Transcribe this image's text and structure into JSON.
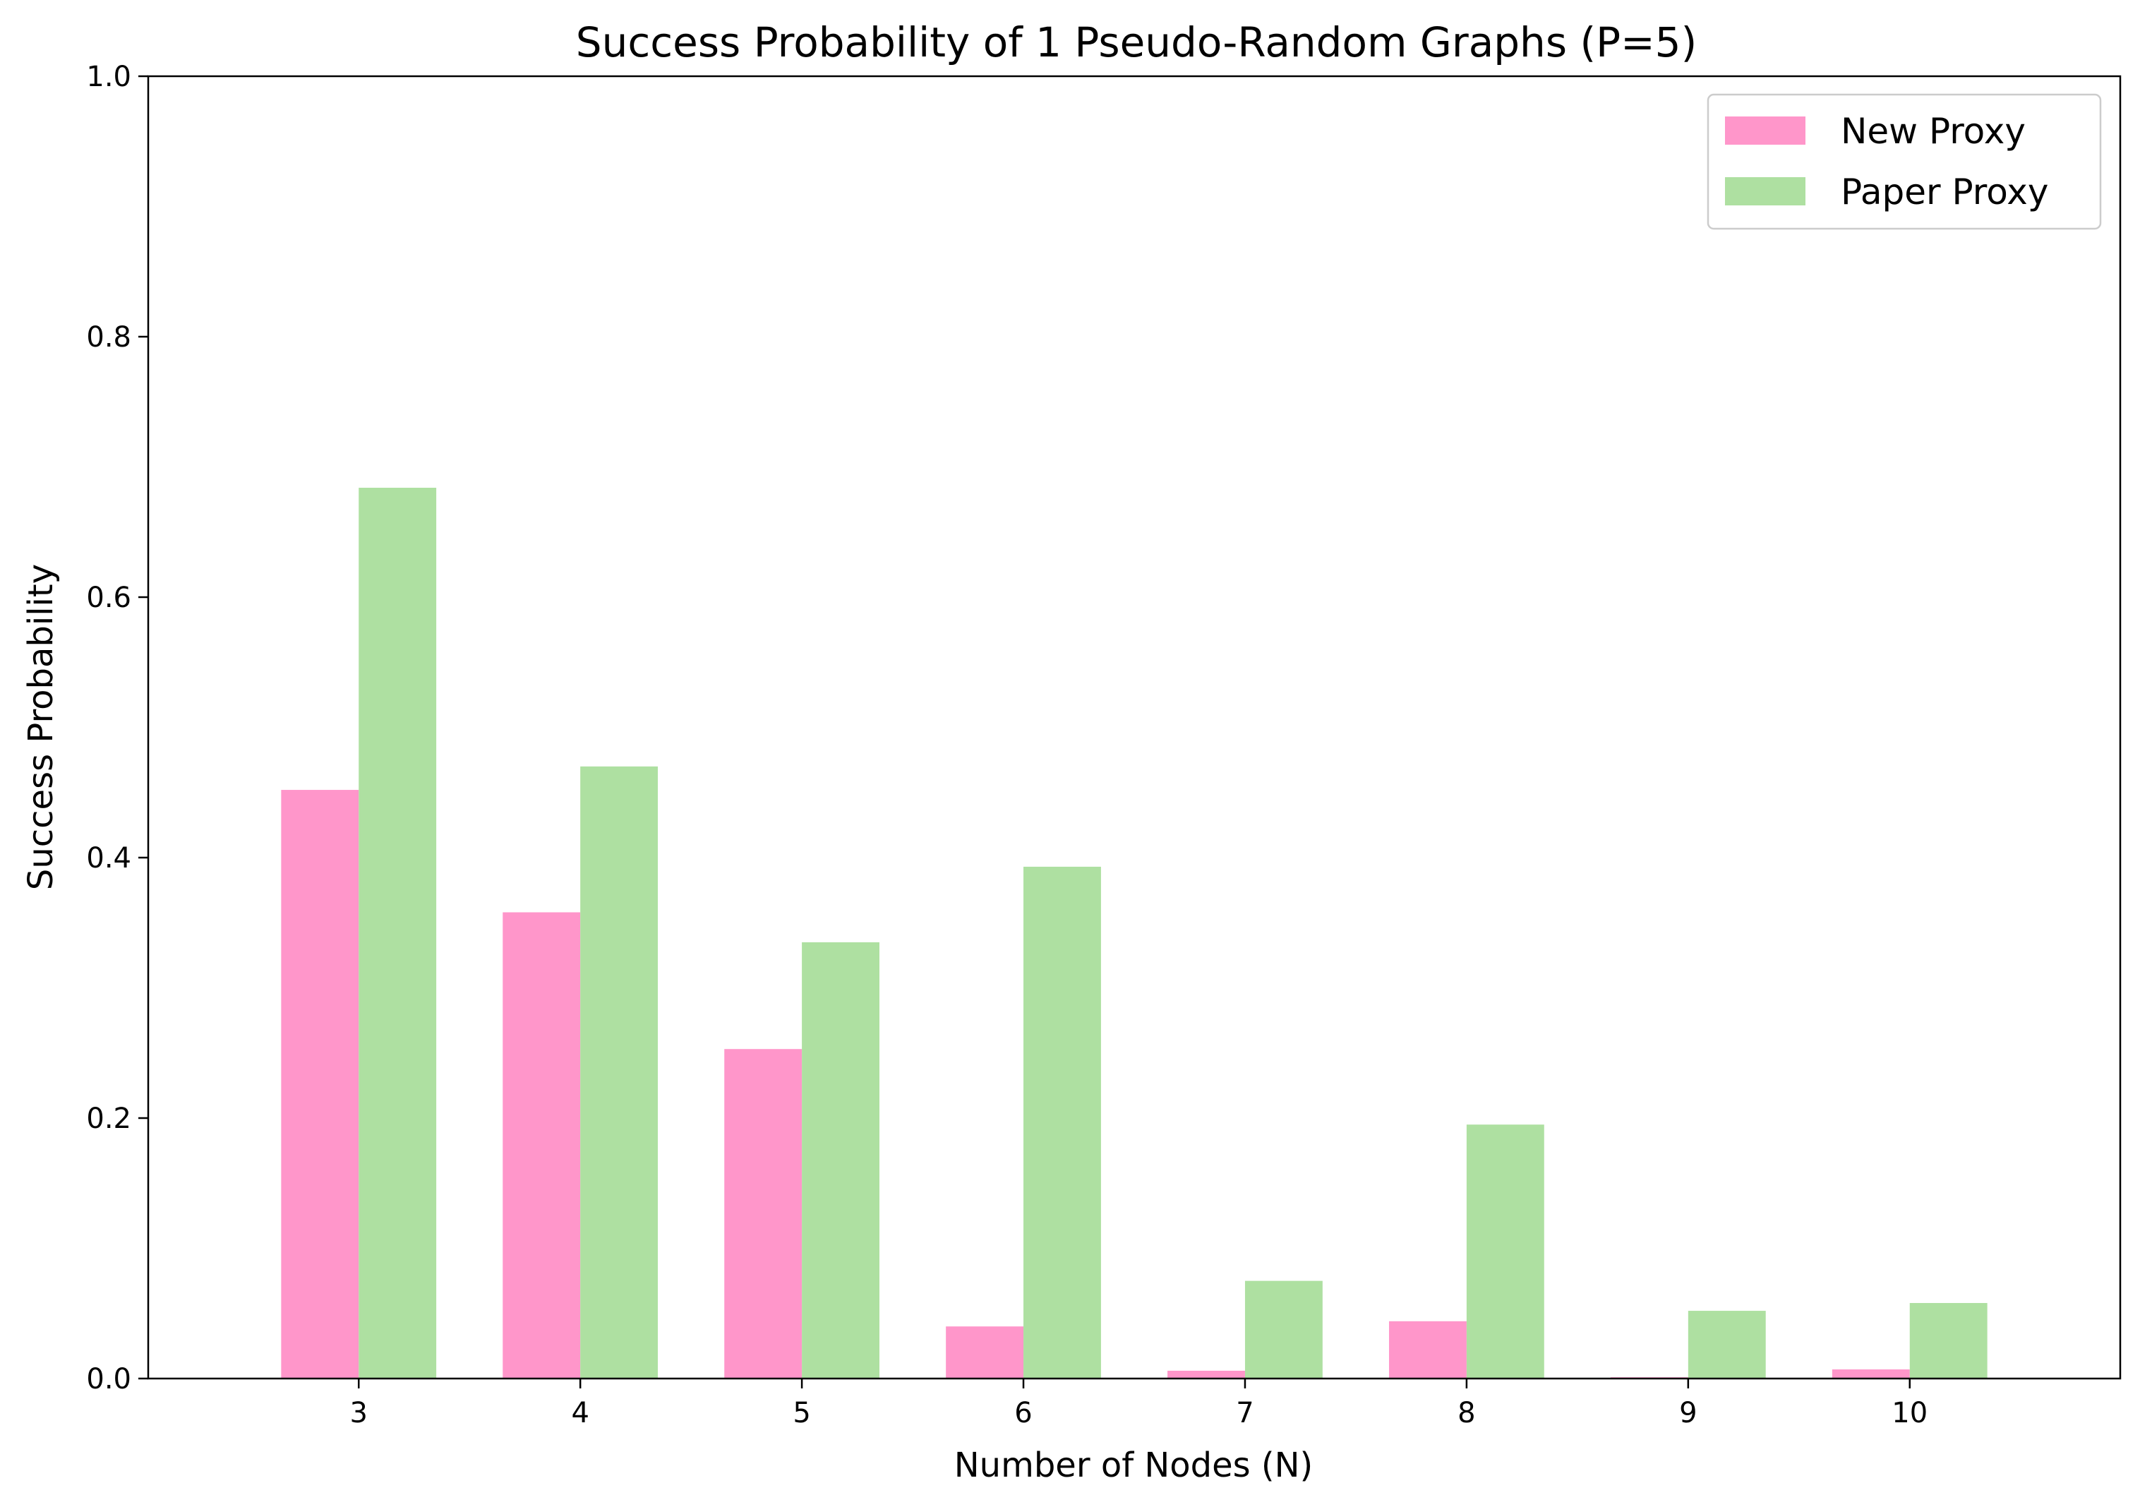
{
  "chart_data": {
    "type": "bar",
    "title": "Success Probability of 1 Pseudo-Random Graphs (P=5)",
    "xlabel": "Number of Nodes (N)",
    "ylabel": "Success Probability",
    "categories": [
      "3",
      "4",
      "5",
      "6",
      "7",
      "8",
      "9",
      "10"
    ],
    "series": [
      {
        "name": "New Proxy",
        "color": "#ff96ca",
        "values": [
          0.452,
          0.358,
          0.253,
          0.04,
          0.006,
          0.044,
          0.001,
          0.007
        ]
      },
      {
        "name": "Paper Proxy",
        "color": "#aee0a1",
        "values": [
          0.684,
          0.47,
          0.335,
          0.393,
          0.075,
          0.195,
          0.052,
          0.058
        ]
      }
    ],
    "ylim": [
      0,
      1.0
    ],
    "yticks": [
      "0.0",
      "0.2",
      "0.4",
      "0.6",
      "0.8",
      "1.0"
    ],
    "grid": false,
    "legend_position": "top-right"
  }
}
